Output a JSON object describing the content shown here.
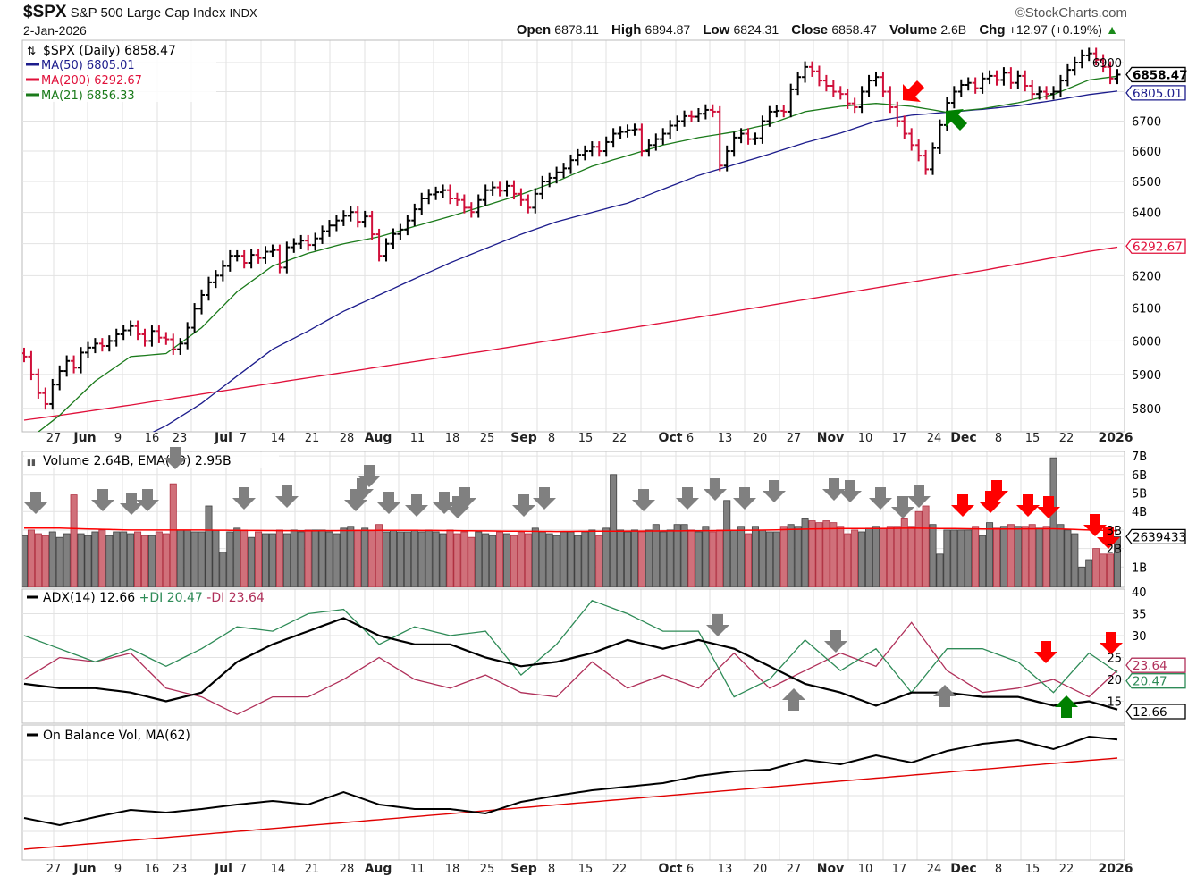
{
  "header": {
    "symbol": "$SPX",
    "name": "S&P 500 Large Cap Index",
    "exchange": "INDX",
    "date": "2-Jan-2026",
    "brand": "©StockCharts.com",
    "open_label": "Open",
    "open": "6878.11",
    "high_label": "High",
    "high": "6894.87",
    "low_label": "Low",
    "low": "6824.31",
    "close_label": "Close",
    "close": "6858.47",
    "volume_label": "Volume",
    "volume": "2.6B",
    "chg_label": "Chg",
    "chg": "+12.97 (+0.19%)",
    "chg_direction_icon": "triangle-up-icon"
  },
  "colors": {
    "up_bar": "#000000",
    "down_bar": "#d0103a",
    "ma50": "#1c1c8c",
    "ma200": "#e0103a",
    "ma21": "#1a7a1a",
    "vol_up": "#808080",
    "vol_down": "#d0707a",
    "adx": "#000000",
    "plus_di": "#2e8b57",
    "minus_di": "#b0305a",
    "obv": "#000000",
    "obv_ma": "#e00000",
    "annot_gray": "#808080",
    "annot_red": "#ff0000",
    "annot_green": "#008000"
  },
  "chart_data": [
    {
      "type": "ohlc",
      "legend": {
        "main": "$SPX (Daily) 6858.47",
        "ma50": "MA(50) 6805.01",
        "ma200": "MA(200) 6292.67",
        "ma21": "MA(21) 6856.33"
      },
      "y_scale": "log",
      "ylim": [
        5735,
        6960
      ],
      "y_ticks": [
        "6900",
        "6700",
        "6600",
        "6500",
        "6400",
        "6200",
        "6100",
        "6000",
        "5900",
        "5800"
      ],
      "value_tags": {
        "close": "6858.47",
        "ma50": "6805.01",
        "ma200": "6292.67"
      },
      "x_ticks": [
        "27",
        "Jun",
        "9",
        "16",
        "23",
        "Jul",
        "7",
        "14",
        "21",
        "28",
        "Aug",
        "11",
        "18",
        "25",
        "Sep",
        "8",
        "15",
        "22",
        "Oct",
        "6",
        "13",
        "20",
        "27",
        "Nov",
        "10",
        "17",
        "24",
        "Dec",
        "8",
        "15",
        "22",
        "2026"
      ],
      "close": [
        5953,
        5900,
        5845,
        5813,
        5870,
        5910,
        5940,
        5920,
        5965,
        5980,
        5992,
        5985,
        6000,
        6020,
        6032,
        6045,
        6020,
        6000,
        6030,
        6010,
        6005,
        5975,
        5992,
        6040,
        6098,
        6140,
        6179,
        6200,
        6230,
        6262,
        6262,
        6240,
        6265,
        6255,
        6275,
        6280,
        6225,
        6289,
        6300,
        6310,
        6296,
        6317,
        6340,
        6358,
        6374,
        6389,
        6401,
        6370,
        6387,
        6330,
        6262,
        6300,
        6331,
        6345,
        6374,
        6410,
        6445,
        6458,
        6465,
        6472,
        6445,
        6440,
        6415,
        6401,
        6440,
        6472,
        6481,
        6470,
        6486,
        6460,
        6440,
        6415,
        6460,
        6500,
        6512,
        6530,
        6543,
        6570,
        6588,
        6600,
        6614,
        6600,
        6630,
        6658,
        6664,
        6670,
        6673,
        6600,
        6620,
        6640,
        6658,
        6685,
        6700,
        6717,
        6715,
        6725,
        6738,
        6732,
        6552,
        6600,
        6645,
        6658,
        6640,
        6643,
        6700,
        6732,
        6735,
        6732,
        6808,
        6850,
        6885,
        6870,
        6838,
        6820,
        6800,
        6792,
        6760,
        6747,
        6800,
        6838,
        6850,
        6800,
        6747,
        6700,
        6658,
        6620,
        6585,
        6540,
        6610,
        6687,
        6762,
        6800,
        6823,
        6830,
        6812,
        6845,
        6854,
        6840,
        6865,
        6830,
        6854,
        6820,
        6792,
        6800,
        6792,
        6800,
        6838,
        6875,
        6900,
        6925,
        6932,
        6910,
        6885,
        6845,
        6858.47
      ],
      "ma50_weekly": [
        5560,
        5600,
        5650,
        5700,
        5750,
        5815,
        5895,
        5975,
        6030,
        6090,
        6140,
        6190,
        6240,
        6285,
        6330,
        6370,
        6400,
        6430,
        6475,
        6520,
        6555,
        6590,
        6628,
        6660,
        6700,
        6720,
        6730,
        6740,
        6752,
        6770,
        6790,
        6805.01
      ],
      "ma200_weekly": [
        5766,
        5780,
        5795,
        5810,
        5826,
        5842,
        5858,
        5874,
        5890,
        5906,
        5922,
        5938,
        5954,
        5970,
        5987,
        6004,
        6021,
        6038,
        6055,
        6072,
        6090,
        6108,
        6126,
        6144,
        6162,
        6180,
        6198,
        6216,
        6236,
        6256,
        6276,
        6292.67
      ],
      "ma21_weekly": [
        5700,
        5780,
        5880,
        5953,
        5962,
        6040,
        6150,
        6230,
        6270,
        6300,
        6322,
        6355,
        6387,
        6422,
        6458,
        6500,
        6550,
        6585,
        6620,
        6645,
        6664,
        6690,
        6732,
        6750,
        6760,
        6750,
        6730,
        6742,
        6762,
        6790,
        6840,
        6856.33
      ]
    },
    {
      "type": "bar",
      "legend": "Volume 2.64B, EMA(50) 2.95B",
      "unit": "B",
      "y_ticks": [
        "7B",
        "6B",
        "5B",
        "4B",
        "3B",
        "2B",
        "1B"
      ],
      "value_tag": "2639433",
      "values": [
        2.7,
        3.0,
        2.8,
        2.7,
        2.9,
        2.6,
        2.8,
        4.9,
        2.8,
        2.7,
        2.9,
        3.0,
        2.7,
        2.9,
        2.9,
        2.8,
        2.9,
        2.7,
        2.7,
        2.9,
        2.8,
        5.5,
        3.0,
        3.0,
        2.9,
        2.9,
        4.3,
        3.0,
        1.8,
        2.9,
        3.1,
        3.0,
        2.6,
        2.9,
        2.8,
        2.8,
        3.0,
        2.8,
        3.0,
        2.9,
        3.0,
        3.0,
        3.0,
        2.9,
        2.8,
        3.1,
        3.2,
        3.0,
        3.1,
        3.0,
        3.3,
        2.9,
        3.0,
        2.9,
        2.9,
        3.0,
        2.9,
        3.0,
        2.9,
        2.8,
        3.0,
        2.8,
        2.9,
        2.6,
        2.9,
        2.8,
        2.7,
        2.9,
        2.8,
        2.7,
        2.9,
        2.8,
        3.1,
        2.9,
        2.8,
        2.7,
        2.9,
        2.9,
        2.7,
        2.9,
        3.0,
        2.7,
        3.1,
        6.0,
        3.0,
        2.9,
        3.0,
        2.9,
        3.0,
        3.3,
        2.9,
        3.0,
        3.3,
        3.3,
        3.0,
        2.9,
        3.2,
        2.9,
        3.0,
        4.6,
        3.0,
        3.2,
        2.8,
        3.2,
        3.0,
        2.9,
        2.9,
        3.2,
        3.3,
        3.2,
        3.6,
        3.5,
        3.4,
        3.5,
        3.4,
        3.2,
        2.8,
        3.0,
        2.9,
        3.1,
        3.2,
        3.1,
        3.2,
        3.2,
        3.6,
        3.2,
        4.0,
        4.3,
        3.3,
        1.7,
        3.0,
        3.0,
        3.0,
        3.0,
        3.2,
        2.7,
        3.4,
        3.1,
        3.2,
        3.3,
        3.2,
        3.2,
        3.3,
        3.1,
        3.2,
        6.9,
        3.3,
        3.0,
        2.8,
        1.0,
        1.4,
        2.0,
        1.7,
        1.7,
        2.64
      ],
      "ema50_weekly": [
        3.1,
        3.1,
        3.05,
        3.0,
        3.0,
        3.0,
        2.98,
        2.97,
        2.96,
        2.97,
        2.98,
        2.98,
        2.97,
        2.95,
        2.93,
        2.92,
        2.93,
        2.94,
        2.95,
        2.96,
        2.98,
        3.0,
        3.05,
        3.08,
        3.08,
        3.1,
        3.08,
        3.06,
        3.06,
        3.07,
        3.0,
        2.95
      ]
    },
    {
      "type": "line",
      "legend": {
        "adx": "ADX(14) 12.66",
        "plus_di": "+DI 20.47",
        "minus_di": "-DI 23.64"
      },
      "y_ticks": [
        "40",
        "35",
        "30",
        "25",
        "20",
        "15"
      ],
      "value_tags": {
        "minus_di": "23.64",
        "plus_di": "20.47",
        "adx": "12.66"
      },
      "adx_weekly": [
        19,
        18,
        18,
        17,
        15,
        17,
        24,
        28,
        31,
        34,
        30,
        28,
        28,
        25,
        23,
        24,
        26,
        29,
        27,
        29,
        27,
        23,
        19,
        17,
        14,
        17,
        17,
        16,
        16,
        14,
        15,
        12.66
      ],
      "plus_di_weekly": [
        30,
        27,
        24,
        27,
        23,
        27,
        32,
        31,
        35,
        36,
        28,
        32,
        30,
        31,
        21,
        28,
        38,
        35,
        31,
        31,
        16,
        20,
        29,
        22,
        27,
        17,
        27,
        27,
        24,
        17,
        26,
        20.47
      ],
      "minus_di_weekly": [
        20,
        25,
        24,
        26,
        18,
        16,
        12,
        16,
        16,
        20,
        25,
        20,
        18,
        21,
        17,
        16,
        24,
        18,
        21,
        18,
        26,
        18,
        22,
        26,
        23,
        33,
        22,
        17,
        18,
        20,
        16,
        23.64
      ]
    },
    {
      "type": "line",
      "legend": "On Balance Vol, MA(62)",
      "obv_weekly": [
        22.5,
        18.5,
        23,
        27,
        25.5,
        27.5,
        30,
        32,
        30,
        37,
        30,
        27.5,
        27.5,
        25,
        31.5,
        35,
        38,
        40,
        42,
        46,
        48.5,
        49.5,
        55,
        52.5,
        57.5,
        53.5,
        60,
        64,
        66,
        61,
        68,
        66
      ],
      "obv_ma_weekly": [
        5,
        56
      ]
    }
  ]
}
